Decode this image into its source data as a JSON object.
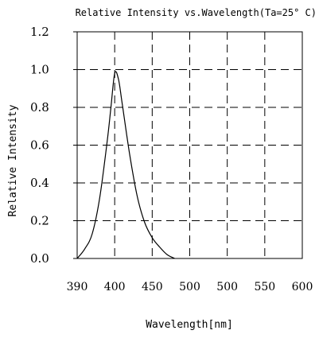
{
  "chart_data": {
    "type": "line",
    "title": "Relative Intensity vs.Wavelength(Ta=25° C)",
    "xlabel": "Wavelength[nm]",
    "ylabel": "Relative Intensity",
    "x_tick_labels": [
      "390",
      "400",
      "450",
      "500",
      "500",
      "550",
      "600"
    ],
    "y_tick_labels": [
      "0.0",
      "0.2",
      "0.4",
      "0.6",
      "0.8",
      "1.0",
      "1.2"
    ],
    "ylim": [
      0,
      1.2
    ],
    "grid": true,
    "grid_style": "dashed",
    "legend": "none",
    "series": [
      {
        "color": "#000000",
        "x": [
          390,
          392,
          394,
          396,
          398,
          399,
          400,
          401,
          402,
          404,
          406,
          408,
          410,
          412,
          414,
          416
        ],
        "y": [
          0.0,
          0.05,
          0.13,
          0.32,
          0.62,
          0.8,
          0.98,
          0.95,
          0.82,
          0.55,
          0.33,
          0.19,
          0.11,
          0.06,
          0.02,
          0.0
        ]
      }
    ]
  }
}
